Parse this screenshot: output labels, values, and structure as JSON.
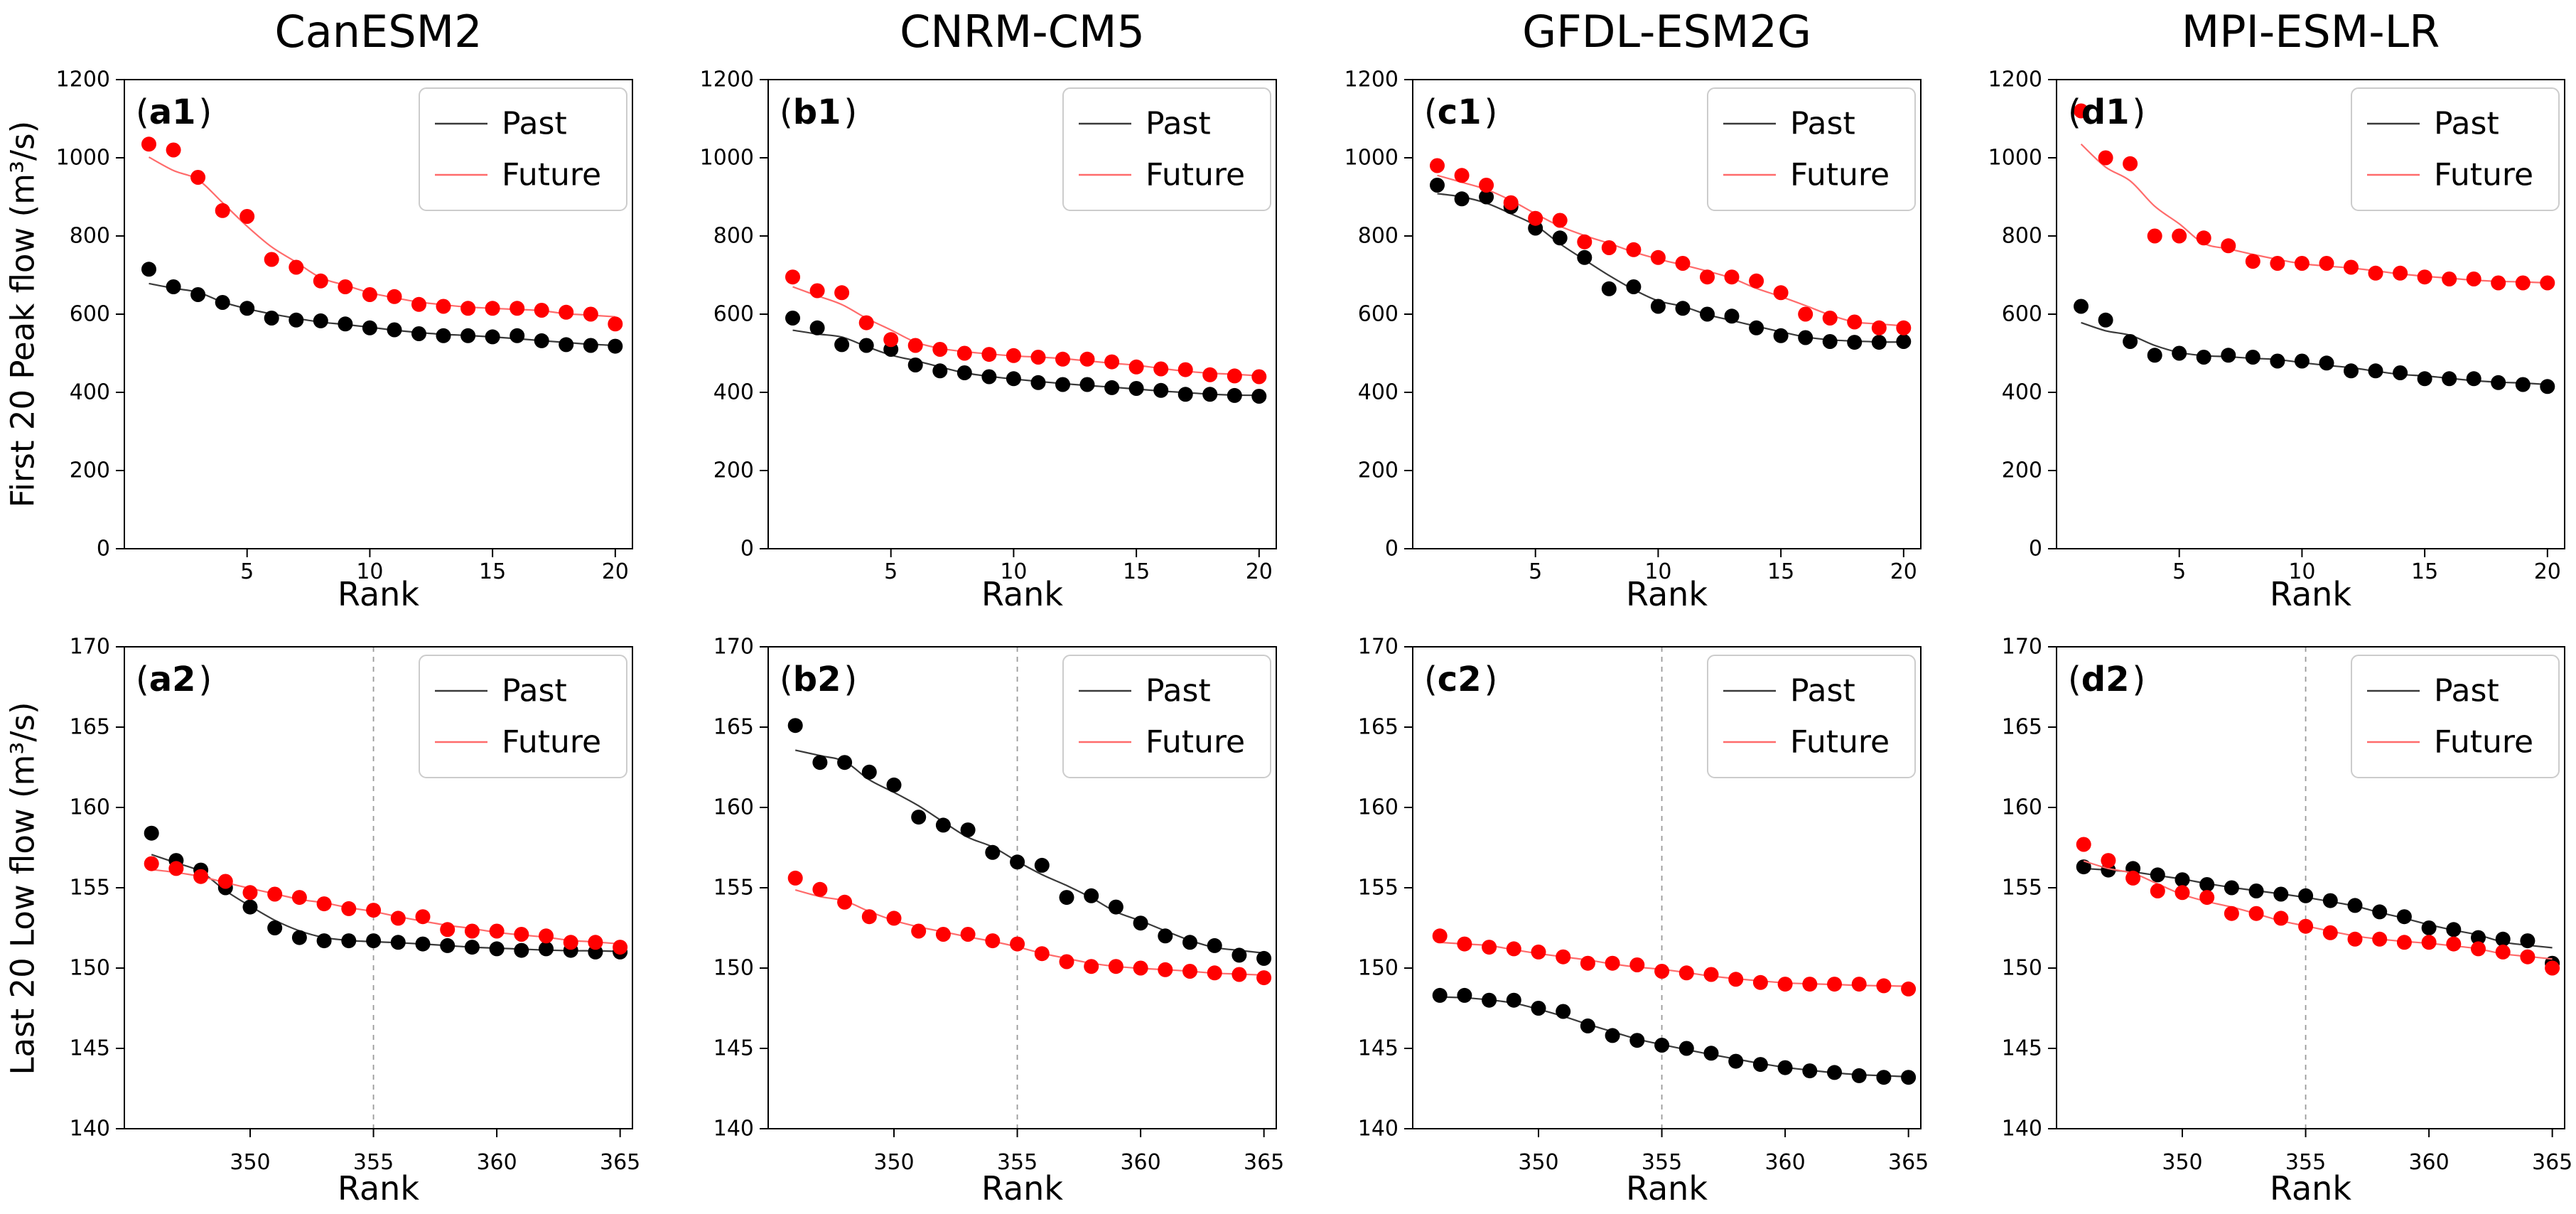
{
  "figure": {
    "ylabel_top": "First 20 Peak flow (m³/s)",
    "ylabel_bottom": "Last 20 Low flow (m³/s)",
    "xlabel": "Rank",
    "column_titles": [
      "CanESM2",
      "CNRM-CM5",
      "GFDL-ESM2G",
      "MPI-ESM-LR"
    ],
    "legend_labels": [
      "Past",
      "Future"
    ],
    "colors": {
      "past_point": "#000000",
      "past_line": "#3a3a3a",
      "future_point": "#ff0000",
      "future_line": "#ff6b6b",
      "vline": "#9a9a9a",
      "legend_border": "#cccccc",
      "spine": "#000000"
    }
  },
  "chart_data": [
    {
      "id": "a1",
      "panel_label": "a1",
      "title": "CanESM2",
      "row": 0,
      "col": 0,
      "type": "scatter",
      "xlabel": "Rank",
      "xlim": [
        0,
        20.7
      ],
      "ylim": [
        0,
        1200
      ],
      "xticks": [
        5,
        10,
        15,
        20
      ],
      "yticks": [
        0,
        200,
        400,
        600,
        800,
        1000,
        1200
      ],
      "vline": null,
      "grid": false,
      "legend_position": "top-right",
      "x": [
        1,
        2,
        3,
        4,
        5,
        6,
        7,
        8,
        9,
        10,
        11,
        12,
        13,
        14,
        15,
        16,
        17,
        18,
        19,
        20
      ],
      "series": [
        {
          "name": "Past",
          "values": [
            715,
            670,
            650,
            630,
            615,
            590,
            585,
            583,
            575,
            565,
            560,
            550,
            545,
            545,
            542,
            545,
            532,
            522,
            520,
            518
          ]
        },
        {
          "name": "Future",
          "values": [
            1035,
            1020,
            950,
            865,
            850,
            740,
            720,
            685,
            670,
            650,
            645,
            625,
            620,
            615,
            615,
            615,
            610,
            605,
            600,
            575
          ]
        }
      ]
    },
    {
      "id": "b1",
      "panel_label": "b1",
      "title": "CNRM-CM5",
      "row": 0,
      "col": 1,
      "type": "scatter",
      "xlabel": "Rank",
      "xlim": [
        0,
        20.7
      ],
      "ylim": [
        0,
        1200
      ],
      "xticks": [
        5,
        10,
        15,
        20
      ],
      "yticks": [
        0,
        200,
        400,
        600,
        800,
        1000,
        1200
      ],
      "vline": null,
      "grid": false,
      "legend_position": "top-right",
      "x": [
        1,
        2,
        3,
        4,
        5,
        6,
        7,
        8,
        9,
        10,
        11,
        12,
        13,
        14,
        15,
        16,
        17,
        18,
        19,
        20
      ],
      "series": [
        {
          "name": "Past",
          "values": [
            590,
            565,
            522,
            520,
            510,
            470,
            455,
            450,
            440,
            435,
            425,
            420,
            420,
            412,
            410,
            405,
            395,
            395,
            392,
            390
          ]
        },
        {
          "name": "Future",
          "values": [
            695,
            660,
            655,
            578,
            535,
            520,
            510,
            500,
            497,
            494,
            490,
            485,
            485,
            478,
            465,
            460,
            458,
            445,
            442,
            440
          ]
        }
      ]
    },
    {
      "id": "c1",
      "panel_label": "c1",
      "title": "GFDL-ESM2G",
      "row": 0,
      "col": 2,
      "type": "scatter",
      "xlabel": "Rank",
      "xlim": [
        0,
        20.7
      ],
      "ylim": [
        0,
        1200
      ],
      "xticks": [
        5,
        10,
        15,
        20
      ],
      "yticks": [
        0,
        200,
        400,
        600,
        800,
        1000,
        1200
      ],
      "vline": null,
      "grid": false,
      "legend_position": "top-right",
      "x": [
        1,
        2,
        3,
        4,
        5,
        6,
        7,
        8,
        9,
        10,
        11,
        12,
        13,
        14,
        15,
        16,
        17,
        18,
        19,
        20
      ],
      "series": [
        {
          "name": "Past",
          "values": [
            930,
            895,
            900,
            875,
            820,
            795,
            745,
            665,
            670,
            620,
            615,
            600,
            595,
            565,
            545,
            540,
            530,
            528,
            528,
            530
          ]
        },
        {
          "name": "Future",
          "values": [
            980,
            955,
            930,
            885,
            845,
            840,
            785,
            770,
            765,
            745,
            730,
            695,
            695,
            685,
            655,
            600,
            590,
            580,
            565,
            565
          ]
        }
      ]
    },
    {
      "id": "d1",
      "panel_label": "d1",
      "title": "MPI-ESM-LR",
      "row": 0,
      "col": 3,
      "type": "scatter",
      "xlabel": "Rank",
      "xlim": [
        0,
        20.7
      ],
      "ylim": [
        0,
        1200
      ],
      "xticks": [
        5,
        10,
        15,
        20
      ],
      "yticks": [
        0,
        200,
        400,
        600,
        800,
        1000,
        1200
      ],
      "vline": null,
      "grid": false,
      "legend_position": "top-right",
      "x": [
        1,
        2,
        3,
        4,
        5,
        6,
        7,
        8,
        9,
        10,
        11,
        12,
        13,
        14,
        15,
        16,
        17,
        18,
        19,
        20
      ],
      "series": [
        {
          "name": "Past",
          "values": [
            620,
            585,
            530,
            495,
            500,
            490,
            495,
            490,
            480,
            480,
            475,
            455,
            455,
            450,
            435,
            435,
            435,
            425,
            420,
            415
          ]
        },
        {
          "name": "Future",
          "values": [
            1120,
            1000,
            985,
            800,
            800,
            795,
            775,
            735,
            730,
            730,
            730,
            720,
            705,
            705,
            695,
            690,
            690,
            680,
            680,
            680
          ]
        }
      ]
    },
    {
      "id": "a2",
      "panel_label": "a2",
      "title": "",
      "row": 1,
      "col": 0,
      "type": "scatter",
      "xlabel": "Rank",
      "xlim": [
        344.9,
        365.5
      ],
      "ylim": [
        140,
        170
      ],
      "xticks": [
        350,
        355,
        360,
        365
      ],
      "yticks": [
        140,
        145,
        150,
        155,
        160,
        165,
        170
      ],
      "vline": 355,
      "grid": false,
      "legend_position": "top-right",
      "x": [
        346,
        347,
        348,
        349,
        350,
        351,
        352,
        353,
        354,
        355,
        356,
        357,
        358,
        359,
        360,
        361,
        362,
        363,
        364,
        365
      ],
      "series": [
        {
          "name": "Past",
          "values": [
            158.4,
            156.7,
            156.1,
            155.0,
            153.8,
            152.5,
            151.9,
            151.7,
            151.7,
            151.7,
            151.6,
            151.5,
            151.4,
            151.3,
            151.2,
            151.1,
            151.2,
            151.1,
            151.0,
            151.0
          ]
        },
        {
          "name": "Future",
          "values": [
            156.5,
            156.2,
            155.7,
            155.4,
            154.7,
            154.6,
            154.4,
            154.0,
            153.7,
            153.6,
            153.1,
            153.2,
            152.4,
            152.3,
            152.3,
            152.1,
            152.0,
            151.6,
            151.6,
            151.3
          ]
        }
      ]
    },
    {
      "id": "b2",
      "panel_label": "b2",
      "title": "",
      "row": 1,
      "col": 1,
      "type": "scatter",
      "xlabel": "Rank",
      "xlim": [
        344.9,
        365.5
      ],
      "ylim": [
        140,
        170
      ],
      "xticks": [
        350,
        355,
        360,
        365
      ],
      "yticks": [
        140,
        145,
        150,
        155,
        160,
        165,
        170
      ],
      "vline": 355,
      "grid": false,
      "legend_position": "top-right",
      "x": [
        346,
        347,
        348,
        349,
        350,
        351,
        352,
        353,
        354,
        355,
        356,
        357,
        358,
        359,
        360,
        361,
        362,
        363,
        364,
        365
      ],
      "series": [
        {
          "name": "Past",
          "values": [
            165.1,
            162.8,
            162.8,
            162.2,
            161.4,
            159.4,
            158.9,
            158.6,
            157.2,
            156.6,
            156.4,
            154.4,
            154.5,
            153.8,
            152.8,
            152.0,
            151.6,
            151.4,
            150.8,
            150.6
          ]
        },
        {
          "name": "Future",
          "values": [
            155.6,
            154.9,
            154.1,
            153.2,
            153.1,
            152.3,
            152.1,
            152.1,
            151.7,
            151.5,
            150.9,
            150.4,
            150.1,
            150.1,
            150.0,
            149.9,
            149.8,
            149.7,
            149.6,
            149.4
          ]
        }
      ]
    },
    {
      "id": "c2",
      "panel_label": "c2",
      "title": "",
      "row": 1,
      "col": 2,
      "type": "scatter",
      "xlabel": "Rank",
      "xlim": [
        344.9,
        365.5
      ],
      "ylim": [
        140,
        170
      ],
      "xticks": [
        350,
        355,
        360,
        365
      ],
      "yticks": [
        140,
        145,
        150,
        155,
        160,
        165,
        170
      ],
      "vline": 355,
      "grid": false,
      "legend_position": "top-right",
      "x": [
        346,
        347,
        348,
        349,
        350,
        351,
        352,
        353,
        354,
        355,
        356,
        357,
        358,
        359,
        360,
        361,
        362,
        363,
        364,
        365
      ],
      "series": [
        {
          "name": "Past",
          "values": [
            148.3,
            148.3,
            148.0,
            148.0,
            147.5,
            147.3,
            146.4,
            145.8,
            145.5,
            145.2,
            145.0,
            144.7,
            144.2,
            144.0,
            143.8,
            143.6,
            143.5,
            143.3,
            143.2,
            143.2
          ]
        },
        {
          "name": "Future",
          "values": [
            152.0,
            151.5,
            151.3,
            151.2,
            151.0,
            150.7,
            150.3,
            150.3,
            150.2,
            149.8,
            149.7,
            149.6,
            149.3,
            149.1,
            149.0,
            149.0,
            149.0,
            149.0,
            148.9,
            148.7
          ]
        }
      ]
    },
    {
      "id": "d2",
      "panel_label": "d2",
      "title": "",
      "row": 1,
      "col": 3,
      "type": "scatter",
      "xlabel": "Rank",
      "xlim": [
        344.9,
        365.5
      ],
      "ylim": [
        140,
        170
      ],
      "xticks": [
        350,
        355,
        360,
        365
      ],
      "yticks": [
        140,
        145,
        150,
        155,
        160,
        165,
        170
      ],
      "vline": 355,
      "grid": false,
      "legend_position": "top-right",
      "x": [
        346,
        347,
        348,
        349,
        350,
        351,
        352,
        353,
        354,
        355,
        356,
        357,
        358,
        359,
        360,
        361,
        362,
        363,
        364,
        365
      ],
      "series": [
        {
          "name": "Past",
          "values": [
            156.3,
            156.1,
            156.2,
            155.8,
            155.5,
            155.2,
            155.0,
            154.8,
            154.6,
            154.5,
            154.2,
            153.9,
            153.5,
            153.2,
            152.5,
            152.4,
            151.9,
            151.8,
            151.7,
            150.3
          ]
        },
        {
          "name": "Future",
          "values": [
            157.7,
            156.7,
            155.6,
            154.8,
            154.7,
            154.4,
            153.4,
            153.4,
            153.1,
            152.6,
            152.2,
            151.8,
            151.8,
            151.6,
            151.6,
            151.5,
            151.2,
            151.0,
            150.7,
            150.0
          ]
        }
      ]
    }
  ]
}
